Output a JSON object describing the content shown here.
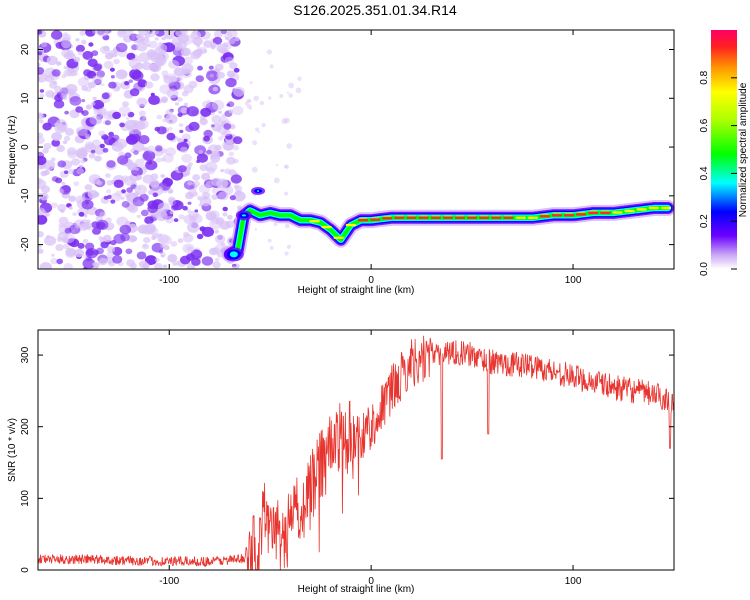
{
  "title": "S126.2025.351.01.34.R14",
  "colors": {
    "axis": "#000000",
    "noise": "#7a2cf0",
    "noise_light": "#d9c2f7",
    "snr_line": "#e8342e",
    "ridge_center": "#ff2a2a"
  },
  "chart_data": [
    {
      "type": "heatmap",
      "name": "spectrogram",
      "xlabel": "Height of straight line (km)",
      "ylabel": "Frequency (Hz)",
      "xlim": [
        -165,
        150
      ],
      "ylim": [
        -25,
        24
      ],
      "xticks": [
        -100,
        0,
        100
      ],
      "yticks": [
        -20,
        -10,
        0,
        10,
        20
      ],
      "noise_region_x": [
        -165,
        -65
      ],
      "ridge": {
        "x": [
          -70,
          -66,
          -63,
          -60,
          -55,
          -50,
          -45,
          -40,
          -35,
          -30,
          -25,
          -20,
          -15,
          -10,
          -5,
          0,
          10,
          20,
          40,
          60,
          80,
          90,
          100,
          110,
          120,
          130,
          140,
          147
        ],
        "y": [
          -22,
          -21,
          -14,
          -13,
          -14,
          -13.5,
          -14,
          -14,
          -15,
          -15,
          -15.5,
          -17,
          -19,
          -16,
          -15,
          -15,
          -14.5,
          -14.5,
          -14.5,
          -14.5,
          -14.5,
          -14,
          -14,
          -13.5,
          -13.5,
          -13,
          -12.5,
          -12.5
        ]
      },
      "colorbar": {
        "label": "Normalized spectral amplitude",
        "range": [
          0,
          1
        ],
        "ticks": [
          0.0,
          0.2,
          0.4,
          0.6,
          0.8
        ],
        "tick_labels": [
          "0.0",
          "0.2",
          "0.4",
          "0.6",
          "0.8"
        ]
      }
    },
    {
      "type": "line",
      "name": "snr",
      "xlabel": "Height of straight line (km)",
      "ylabel": "SNR (10 * v/v)",
      "xlim": [
        -165,
        150
      ],
      "ylim": [
        0,
        335
      ],
      "xticks": [
        -100,
        0,
        100
      ],
      "yticks": [
        0,
        100,
        200,
        300
      ],
      "series": [
        {
          "name": "SNR",
          "x": [
            -165,
            -140,
            -120,
            -100,
            -80,
            -65,
            -60,
            -55,
            -52,
            -50,
            -48,
            -45,
            -40,
            -35,
            -30,
            -25,
            -20,
            -15,
            -10,
            -5,
            0,
            10,
            20,
            30,
            40,
            50,
            60,
            80,
            100,
            120,
            140,
            150
          ],
          "y": [
            15,
            15,
            13,
            12,
            12,
            15,
            20,
            40,
            90,
            60,
            50,
            40,
            60,
            90,
            110,
            150,
            170,
            190,
            180,
            190,
            200,
            250,
            290,
            300,
            305,
            300,
            290,
            285,
            270,
            255,
            245,
            235
          ]
        }
      ]
    }
  ]
}
